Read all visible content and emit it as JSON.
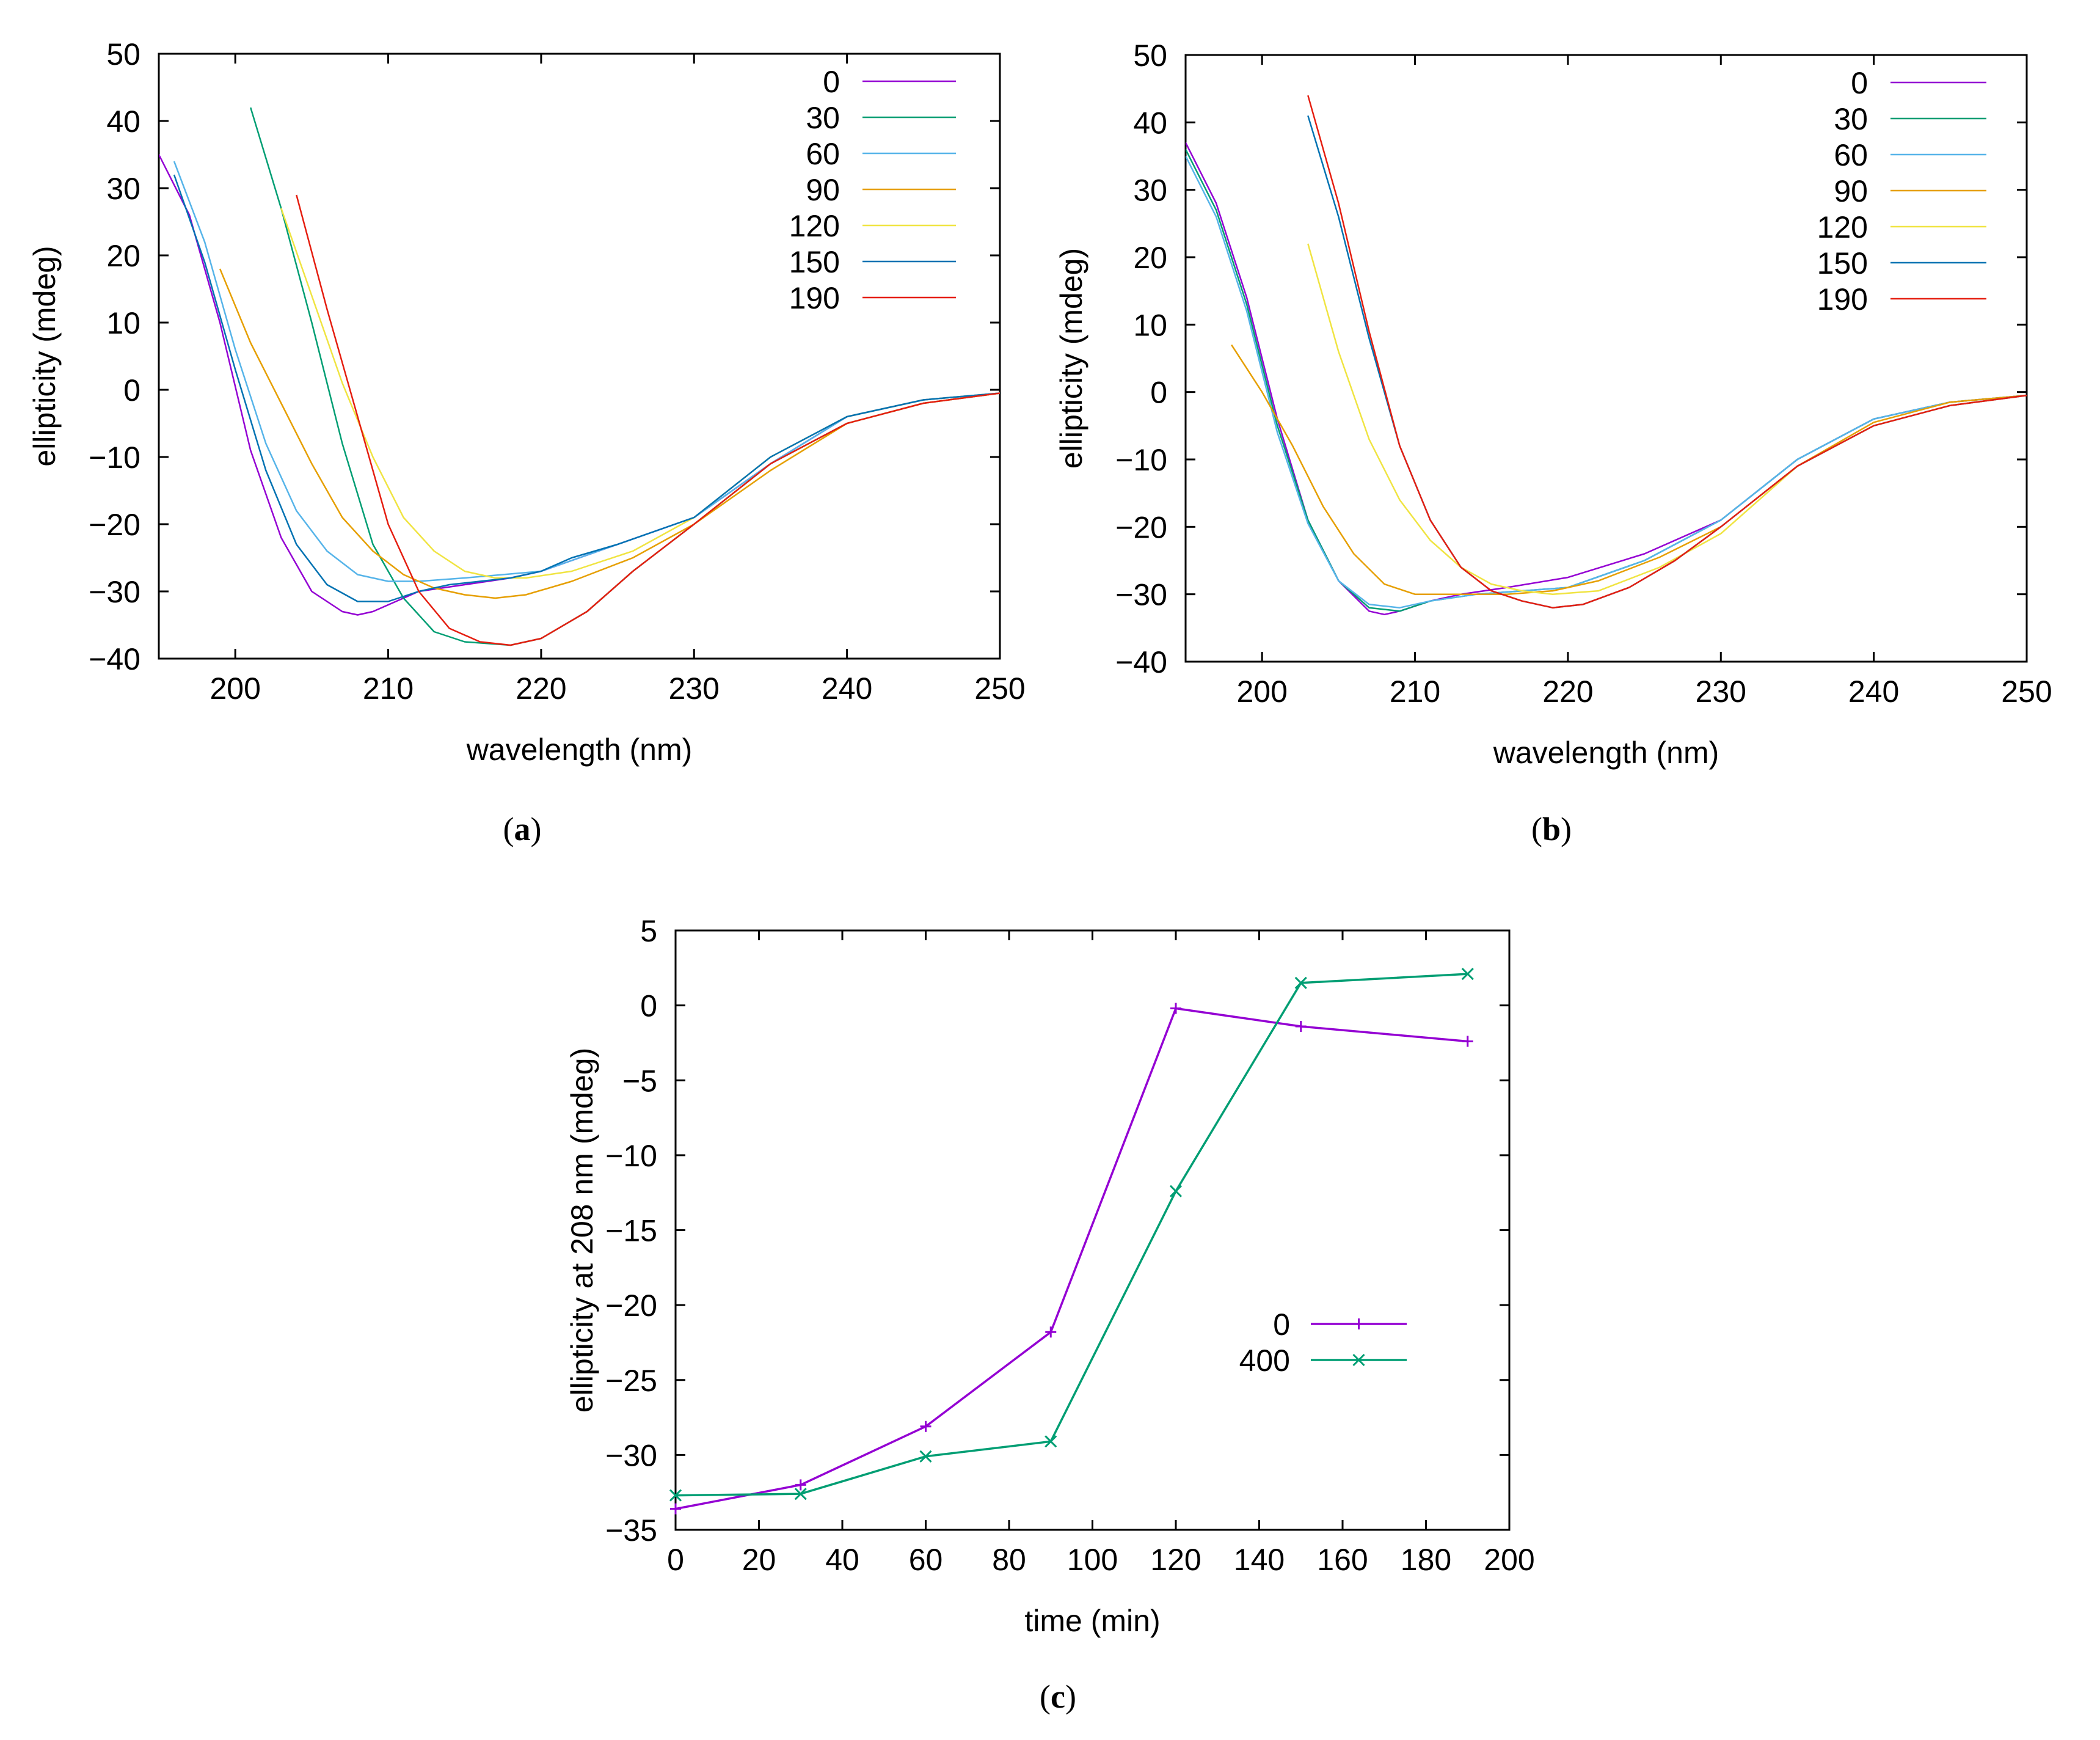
{
  "colors": {
    "0": "#9400d3",
    "30": "#009e73",
    "60": "#56b4e9",
    "90": "#e69f00",
    "120": "#f0e442",
    "150": "#0072b2",
    "190": "#e51e10",
    "400": "#009e73"
  },
  "chart_data": [
    {
      "id": "a",
      "type": "line",
      "caption_label": "a",
      "xlabel": "wavelength (nm)",
      "ylabel": "ellipticity (mdeg)",
      "xlim": [
        195,
        250
      ],
      "ylim": [
        -40,
        50
      ],
      "xticks": [
        200,
        210,
        220,
        230,
        240,
        250
      ],
      "yticks": [
        -40,
        -30,
        -20,
        -10,
        0,
        10,
        20,
        30,
        40,
        50
      ],
      "xtick_labels": [
        "200",
        "210",
        "220",
        "230",
        "240",
        "250"
      ],
      "ytick_labels": [
        "−40",
        "−30",
        "−20",
        "−10",
        "0",
        "10",
        "20",
        "30",
        "40",
        "50"
      ],
      "legend_position": "top-right",
      "series": [
        {
          "name": "0",
          "x": [
            195,
            197,
            199,
            201,
            203,
            205,
            207,
            208,
            209,
            210,
            212,
            215,
            218,
            220,
            225,
            230,
            235,
            240,
            245,
            250
          ],
          "y": [
            35,
            26,
            10,
            -9,
            -22,
            -30,
            -33,
            -33.5,
            -33,
            -32,
            -30,
            -29,
            -28,
            -27,
            -23,
            -19,
            -11,
            -4,
            -1.5,
            -0.5
          ]
        },
        {
          "name": "30",
          "x": [
            201,
            203,
            205,
            207,
            209,
            211,
            213,
            215,
            218,
            220,
            223,
            226,
            230,
            235,
            240,
            245,
            250
          ],
          "y": [
            42,
            27,
            10,
            -8,
            -23,
            -31,
            -36,
            -37.5,
            -38,
            -37,
            -33,
            -27,
            -20,
            -11,
            -5,
            -2,
            -0.5
          ]
        },
        {
          "name": "60",
          "x": [
            196,
            198,
            200,
            202,
            204,
            206,
            208,
            210,
            212,
            215,
            220,
            225,
            230,
            235,
            240,
            245,
            250
          ],
          "y": [
            34,
            22,
            6,
            -8,
            -18,
            -24,
            -27.5,
            -28.5,
            -28.5,
            -28,
            -27,
            -23,
            -19,
            -11,
            -4,
            -1.5,
            -0.5
          ]
        },
        {
          "name": "90",
          "x": [
            199,
            201,
            203,
            205,
            207,
            209,
            211,
            213,
            215,
            217,
            219,
            222,
            226,
            230,
            235,
            240,
            245,
            250
          ],
          "y": [
            18,
            7,
            -2,
            -11,
            -19,
            -24,
            -27.5,
            -29.5,
            -30.5,
            -31,
            -30.5,
            -28.5,
            -25,
            -20,
            -12,
            -5,
            -2,
            -0.5
          ]
        },
        {
          "name": "120",
          "x": [
            203,
            205,
            207,
            209,
            211,
            213,
            215,
            217,
            219,
            222,
            226,
            230,
            235,
            240,
            245,
            250
          ],
          "y": [
            27,
            14,
            1,
            -10,
            -19,
            -24,
            -27,
            -28,
            -28,
            -27,
            -24,
            -19,
            -10,
            -4,
            -1.5,
            -0.5
          ]
        },
        {
          "name": "150",
          "x": [
            196,
            198,
            200,
            202,
            204,
            206,
            208,
            210,
            212,
            214,
            216,
            218,
            220,
            222,
            225,
            230,
            235,
            240,
            245,
            250
          ],
          "y": [
            32,
            19,
            3,
            -12,
            -23,
            -29,
            -31.5,
            -31.5,
            -30,
            -29,
            -28.5,
            -28,
            -27,
            -25,
            -23,
            -19,
            -10,
            -4,
            -1.5,
            -0.5
          ]
        },
        {
          "name": "190",
          "x": [
            204,
            206,
            208,
            210,
            212,
            214,
            216,
            218,
            220,
            223,
            226,
            230,
            235,
            240,
            245,
            250
          ],
          "y": [
            29,
            12,
            -4,
            -20,
            -30,
            -35.5,
            -37.5,
            -38,
            -37,
            -33,
            -27,
            -20,
            -11,
            -5,
            -2,
            -0.5
          ]
        }
      ]
    },
    {
      "id": "b",
      "type": "line",
      "caption_label": "b",
      "xlabel": "wavelength (nm)",
      "ylabel": "ellipticity (mdeg)",
      "xlim": [
        195,
        250
      ],
      "ylim": [
        -40,
        50
      ],
      "xticks": [
        200,
        210,
        220,
        230,
        240,
        250
      ],
      "yticks": [
        -40,
        -30,
        -20,
        -10,
        0,
        10,
        20,
        30,
        40,
        50
      ],
      "xtick_labels": [
        "200",
        "210",
        "220",
        "230",
        "240",
        "250"
      ],
      "ytick_labels": [
        "−40",
        "−30",
        "−20",
        "−10",
        "0",
        "10",
        "20",
        "30",
        "40",
        "50"
      ],
      "legend_position": "top-right",
      "series": [
        {
          "name": "0",
          "x": [
            195,
            197,
            199,
            201,
            203,
            205,
            207,
            208,
            209,
            211,
            213,
            216,
            220,
            225,
            230,
            235,
            240,
            245,
            250
          ],
          "y": [
            37,
            28,
            14,
            -4,
            -19,
            -28,
            -32.5,
            -33,
            -32.5,
            -31,
            -30,
            -29,
            -27.5,
            -24,
            -19,
            -10,
            -4,
            -1.5,
            -0.5
          ]
        },
        {
          "name": "30",
          "x": [
            195,
            197,
            199,
            201,
            203,
            205,
            207,
            209,
            211,
            214,
            217,
            220,
            225,
            230,
            235,
            240,
            245,
            250
          ],
          "y": [
            36,
            27,
            13,
            -5,
            -19,
            -28,
            -32,
            -32.5,
            -31,
            -30,
            -29.5,
            -29,
            -25,
            -19,
            -10,
            -4,
            -1.5,
            -0.5
          ]
        },
        {
          "name": "60",
          "x": [
            195,
            197,
            199,
            201,
            203,
            205,
            207,
            209,
            211,
            214,
            217,
            220,
            225,
            230,
            235,
            240,
            245,
            250
          ],
          "y": [
            35,
            26,
            12,
            -6,
            -19.5,
            -28,
            -31.5,
            -32,
            -31,
            -30,
            -29.5,
            -29,
            -25,
            -19,
            -10,
            -4,
            -1.5,
            -0.5
          ]
        },
        {
          "name": "90",
          "x": [
            198,
            200,
            202,
            204,
            206,
            208,
            210,
            213,
            216,
            219,
            222,
            226,
            230,
            235,
            240,
            245,
            250
          ],
          "y": [
            7,
            0,
            -8,
            -17,
            -24,
            -28.5,
            -30,
            -30,
            -30,
            -29.5,
            -28,
            -24.5,
            -20,
            -11,
            -4.5,
            -1.5,
            -0.5
          ]
        },
        {
          "name": "120",
          "x": [
            203,
            205,
            207,
            209,
            211,
            213,
            215,
            217,
            219,
            222,
            226,
            230,
            235,
            240,
            245,
            250
          ],
          "y": [
            22,
            6,
            -7,
            -16,
            -22,
            -26,
            -28.5,
            -29.5,
            -30,
            -29.5,
            -26,
            -21,
            -11,
            -5,
            -2,
            -0.5
          ]
        },
        {
          "name": "150",
          "x": [
            203,
            205,
            207,
            209,
            211,
            213,
            215,
            217,
            219,
            221,
            224,
            227,
            230,
            235,
            240,
            245,
            250
          ],
          "y": [
            41,
            26,
            8,
            -8,
            -19,
            -26,
            -29.5,
            -31,
            -32,
            -31.5,
            -29,
            -25,
            -20,
            -11,
            -5,
            -2,
            -0.5
          ]
        },
        {
          "name": "190",
          "x": [
            203,
            205,
            207,
            209,
            211,
            213,
            215,
            217,
            219,
            221,
            224,
            227,
            230,
            235,
            240,
            245,
            250
          ],
          "y": [
            44,
            28,
            9,
            -8,
            -19,
            -26,
            -29.5,
            -31,
            -32,
            -31.5,
            -29,
            -25,
            -20,
            -11,
            -5,
            -2,
            -0.5
          ]
        }
      ]
    },
    {
      "id": "c",
      "type": "line",
      "caption_label": "c",
      "xlabel": "time (min)",
      "ylabel": "ellipticity at 208 nm (mdeg)",
      "xlim": [
        0,
        200
      ],
      "ylim": [
        -35,
        5
      ],
      "xticks": [
        0,
        20,
        40,
        60,
        80,
        100,
        120,
        140,
        160,
        180,
        200
      ],
      "yticks": [
        -35,
        -30,
        -25,
        -20,
        -15,
        -10,
        -5,
        0,
        5
      ],
      "xtick_labels": [
        "0",
        "20",
        "40",
        "60",
        "80",
        "100",
        "120",
        "140",
        "160",
        "180",
        "200"
      ],
      "ytick_labels": [
        "−35",
        "−30",
        "−25",
        "−20",
        "−15",
        "−10",
        "−5",
        "0",
        "5"
      ],
      "legend_position": "center-right",
      "series": [
        {
          "name": "0",
          "marker": "+",
          "x": [
            0,
            30,
            60,
            90,
            120,
            150,
            190
          ],
          "y": [
            -33.6,
            -32,
            -28.1,
            -21.8,
            -0.2,
            -1.4,
            -2.4
          ]
        },
        {
          "name": "400",
          "marker": "x",
          "x": [
            0,
            30,
            60,
            90,
            120,
            150,
            190
          ],
          "y": [
            -32.7,
            -32.6,
            -30.1,
            -29.1,
            -12.4,
            1.5,
            2.1
          ]
        }
      ]
    }
  ]
}
